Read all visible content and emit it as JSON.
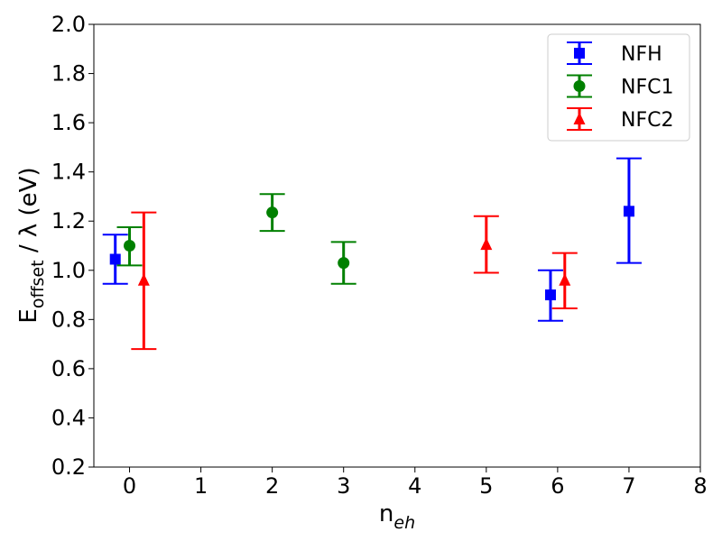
{
  "chart_data": {
    "type": "scatter",
    "title": "",
    "xlabel": {
      "base": "n",
      "sub": "eh"
    },
    "ylabel": {
      "base": "E",
      "sub": "offset",
      "rest": " / λ (eV)"
    },
    "xlim": [
      -0.5,
      8
    ],
    "ylim": [
      0.2,
      2.0
    ],
    "xticks": [
      0,
      1,
      2,
      3,
      4,
      5,
      6,
      7,
      8
    ],
    "yticks": [
      0.2,
      0.4,
      0.6,
      0.8,
      1.0,
      1.2,
      1.4,
      1.6,
      1.8,
      2.0
    ],
    "ytick_labels": [
      "0.2",
      "0.4",
      "0.6",
      "0.8",
      "1.0",
      "1.2",
      "1.4",
      "1.6",
      "1.8",
      "2.0"
    ],
    "grid": false,
    "legend_position": "top-right",
    "series": [
      {
        "name": "NFH",
        "color": "#0000ff",
        "marker": "square",
        "points": [
          {
            "x": -0.2,
            "y": 1.045,
            "lo": 0.945,
            "hi": 1.145
          },
          {
            "x": 5.9,
            "y": 0.9,
            "lo": 0.795,
            "hi": 1.0
          },
          {
            "x": 7.0,
            "y": 1.24,
            "lo": 1.03,
            "hi": 1.455
          }
        ]
      },
      {
        "name": "NFC1",
        "color": "#008000",
        "marker": "circle",
        "points": [
          {
            "x": 0.0,
            "y": 1.1,
            "lo": 1.02,
            "hi": 1.175
          },
          {
            "x": 2.0,
            "y": 1.235,
            "lo": 1.16,
            "hi": 1.31
          },
          {
            "x": 3.0,
            "y": 1.03,
            "lo": 0.945,
            "hi": 1.115
          }
        ]
      },
      {
        "name": "NFC2",
        "color": "#ff0000",
        "marker": "triangle",
        "points": [
          {
            "x": 0.2,
            "y": 0.96,
            "lo": 0.68,
            "hi": 1.235
          },
          {
            "x": 5.0,
            "y": 1.105,
            "lo": 0.99,
            "hi": 1.22
          },
          {
            "x": 6.1,
            "y": 0.96,
            "lo": 0.845,
            "hi": 1.07
          }
        ]
      }
    ]
  }
}
